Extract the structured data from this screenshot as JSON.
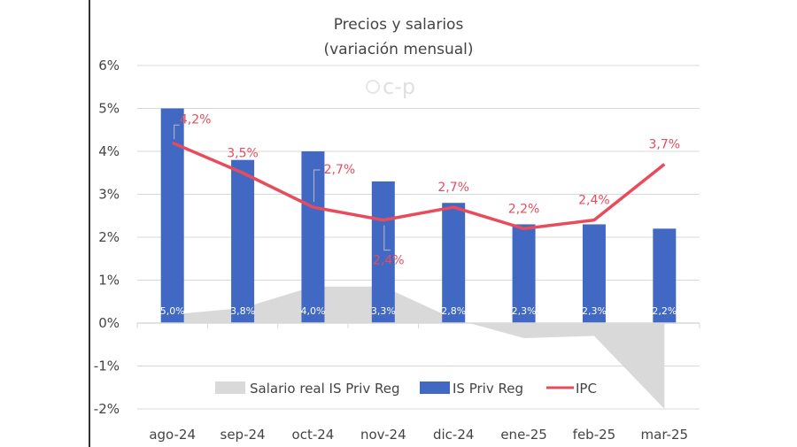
{
  "chart_data": {
    "type": "bar",
    "title": "Precios y salarios",
    "subtitle": "(variación mensual)",
    "watermark": "c-p",
    "categories": [
      "ago-24",
      "sep-24",
      "oct-24",
      "nov-24",
      "dic-24",
      "ene-25",
      "feb-25",
      "mar-25"
    ],
    "ylim": [
      -2,
      6
    ],
    "yticks": [
      "-2%",
      "-1%",
      "0%",
      "1%",
      "2%",
      "3%",
      "4%",
      "5%",
      "6%"
    ],
    "grid": true,
    "legend_placement": "bottom-inside",
    "series": [
      {
        "name": "Salario real IS Priv Reg",
        "type": "area",
        "color": "#d9d9d9",
        "values": [
          0.2,
          0.35,
          0.85,
          0.85,
          0.1,
          -0.35,
          -0.3,
          -2.0
        ]
      },
      {
        "name": "IS Priv Reg",
        "type": "bar",
        "color": "#4169c4",
        "values": [
          5.0,
          3.8,
          4.0,
          3.3,
          2.8,
          2.3,
          2.3,
          2.2
        ],
        "labels": [
          "5,0%",
          "3,8%",
          "4,0%",
          "3,3%",
          "2,8%",
          "2,3%",
          "2,3%",
          "2,2%"
        ]
      },
      {
        "name": "IPC",
        "type": "line",
        "color": "#e84c5c",
        "values": [
          4.2,
          3.5,
          2.7,
          2.4,
          2.7,
          2.2,
          2.4,
          3.7
        ],
        "labels": [
          "4,2%",
          "3,5%",
          "2,7%",
          "2,4%",
          "2,7%",
          "2,2%",
          "2,4%",
          "3,7%"
        ]
      }
    ]
  }
}
